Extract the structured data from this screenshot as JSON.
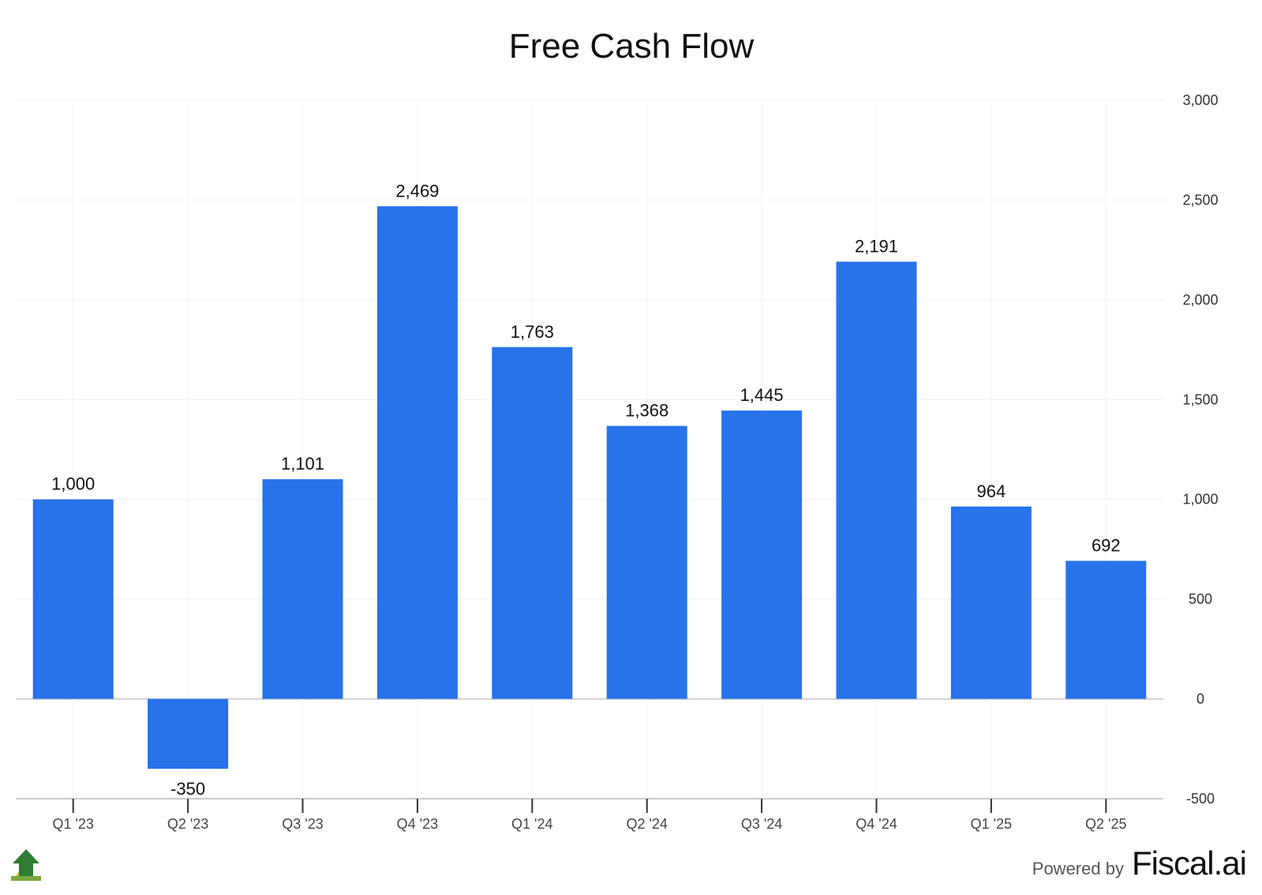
{
  "chart_data": {
    "type": "bar",
    "title": "Free Cash Flow",
    "xlabel": "",
    "ylabel": "",
    "categories": [
      "Q1 '23",
      "Q2 '23",
      "Q3 '23",
      "Q4 '23",
      "Q1 '24",
      "Q2 '24",
      "Q3 '24",
      "Q4 '24",
      "Q1 '25",
      "Q2 '25"
    ],
    "values": [
      1000,
      -350,
      1101,
      2469,
      1763,
      1368,
      1445,
      2191,
      964,
      692
    ],
    "data_labels": [
      "1,000",
      "-350",
      "1,101",
      "2,469",
      "1,763",
      "1,368",
      "1,445",
      "2,191",
      "964",
      "692"
    ],
    "ylim": [
      -500,
      3000
    ],
    "yticks": [
      -500,
      0,
      500,
      1000,
      1500,
      2000,
      2500,
      3000
    ],
    "ytick_labels": [
      "-500",
      "0",
      "500",
      "1,000",
      "1,500",
      "2,000",
      "2,500",
      "3,000"
    ],
    "yaxis_side": "right",
    "grid": true,
    "legend": "none",
    "bar_color": "#2872EA"
  },
  "footer": {
    "powered_by": "Powered by",
    "brand": "Fiscal.ai"
  },
  "icons": {
    "logo": "green-arrow-logo-icon"
  }
}
